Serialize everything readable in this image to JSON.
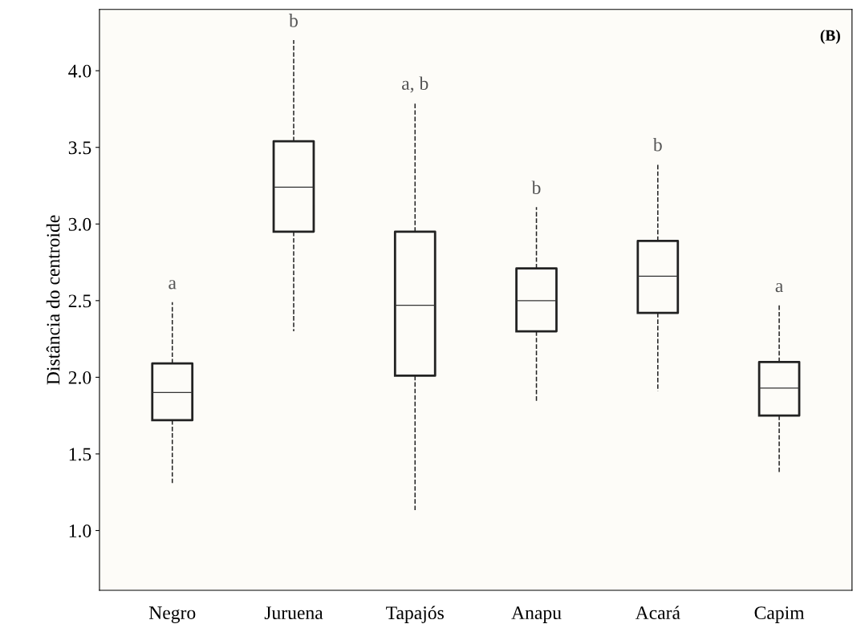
{
  "chart_data": {
    "type": "box",
    "ylabel": "Distância do centroide",
    "categories": [
      "Negro",
      "Juruena",
      "Tapajós",
      "Anapu",
      "Acará",
      "Capim"
    ],
    "boxes": [
      {
        "low": 1.31,
        "q1": 1.72,
        "median": 1.9,
        "q3": 2.09,
        "high": 2.49
      },
      {
        "low": 2.3,
        "q1": 2.95,
        "median": 3.24,
        "q3": 3.54,
        "high": 4.2
      },
      {
        "low": 1.13,
        "q1": 2.01,
        "median": 2.47,
        "q3": 2.95,
        "high": 3.79
      },
      {
        "low": 1.84,
        "q1": 2.3,
        "median": 2.5,
        "q3": 2.71,
        "high": 3.11
      },
      {
        "low": 1.91,
        "q1": 2.42,
        "median": 2.66,
        "q3": 2.89,
        "high": 3.39
      },
      {
        "low": 1.37,
        "q1": 1.75,
        "median": 1.93,
        "q3": 2.1,
        "high": 2.47
      }
    ],
    "ylim": [
      0.61,
      4.4
    ],
    "yticks": [
      {
        "value": 1,
        "label": "1.0"
      },
      {
        "value": 1.5,
        "label": "1.5"
      },
      {
        "value": 2,
        "label": "2.0"
      },
      {
        "value": 2.5,
        "label": "2.5"
      },
      {
        "value": 3,
        "label": "3.0"
      },
      {
        "value": 3.5,
        "label": "3.5"
      },
      {
        "value": 4,
        "label": "4.0"
      }
    ],
    "grid": false,
    "line_style": "dashed",
    "annotations": [
      "a",
      "b",
      "a, b",
      "b",
      "b",
      "a",
      "(B)"
    ]
  }
}
